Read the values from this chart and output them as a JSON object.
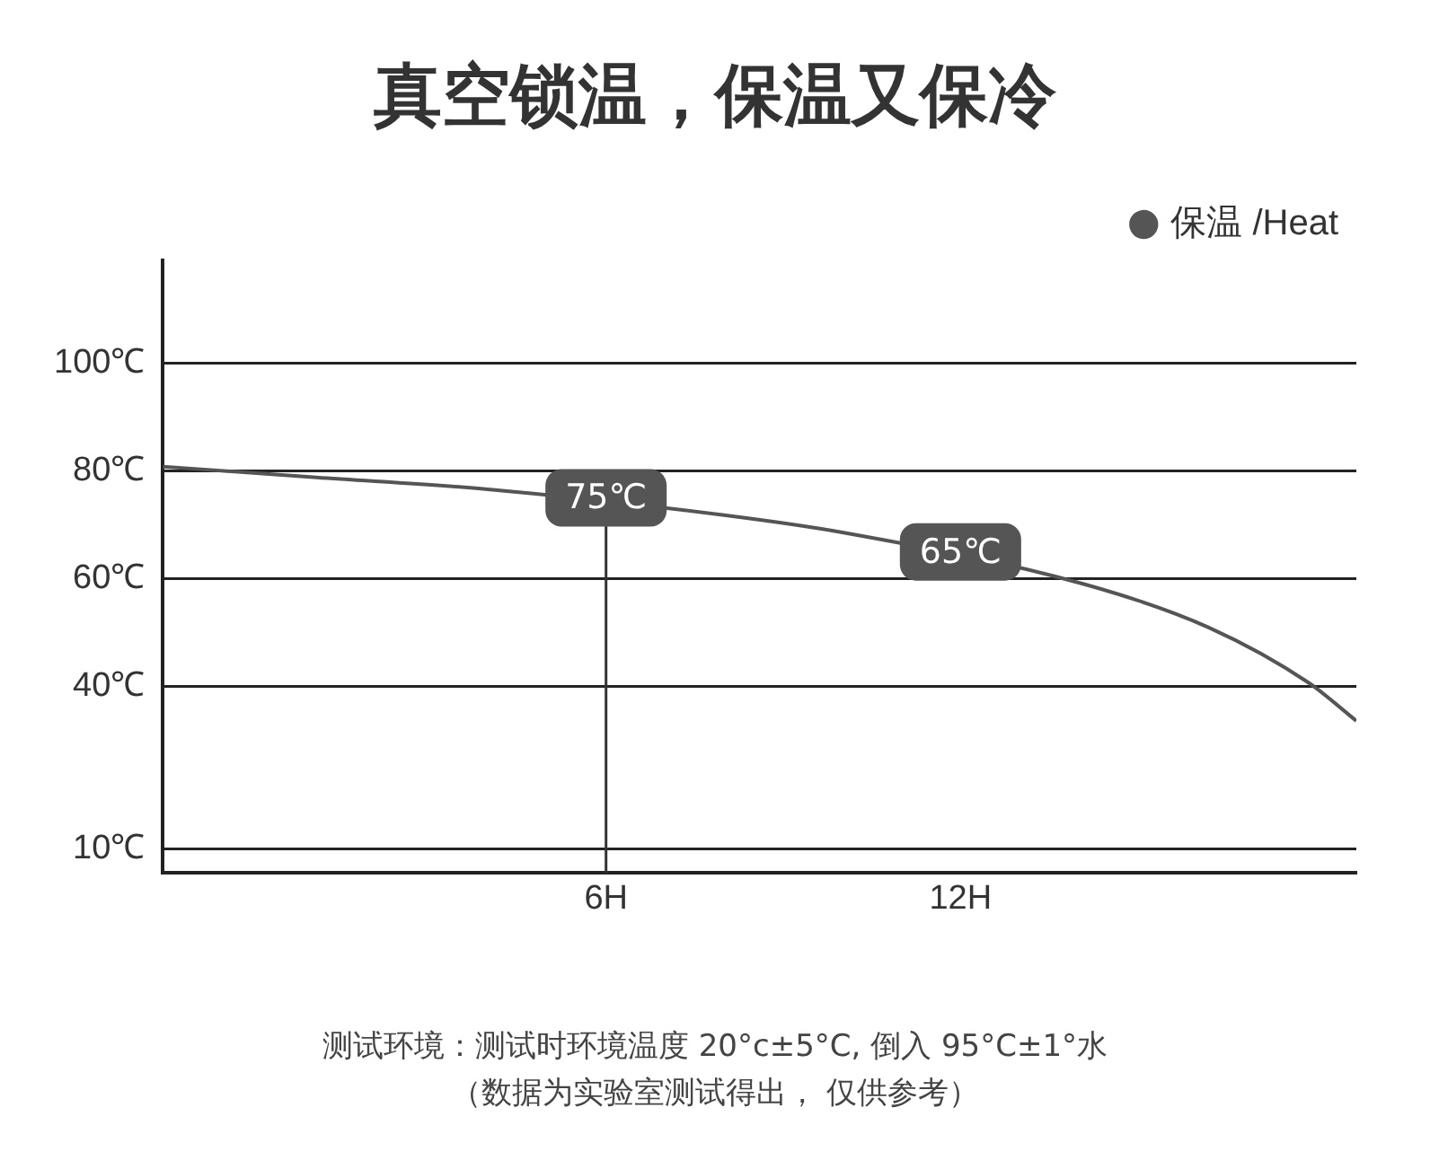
{
  "chart_data": {
    "type": "line",
    "title": "真空锁温，保温又保冷",
    "series": [
      {
        "name": "保温 /Heat",
        "color": "#555555",
        "x": [
          -1.5,
          1.1,
          4,
          8,
          10,
          14.1,
          16.2,
          17.9,
          18.7
        ],
        "values": [
          80.8,
          78.8,
          76.6,
          71.8,
          68.6,
          59,
          51,
          40.7,
          33.7
        ]
      }
    ],
    "xlim": [
      -1.5,
      18.7
    ],
    "xticks": [
      {
        "value": 6,
        "label": "6H"
      },
      {
        "value": 12,
        "label": "12H"
      }
    ],
    "ylim": [
      5.5,
      119
    ],
    "yticks": [
      {
        "value": 100,
        "label": "100℃"
      },
      {
        "value": 80,
        "label": "80℃"
      },
      {
        "value": 60,
        "label": "60℃"
      },
      {
        "value": 40,
        "label": "40℃"
      },
      {
        "value": 10,
        "label": "10℃"
      }
    ],
    "grid": "y",
    "legend": "top right",
    "marker": "none",
    "line_style": "solid",
    "ref_lines": [
      {
        "axis": "x",
        "value": 6,
        "color": "#333333"
      }
    ],
    "annotations": [
      {
        "text": "75℃",
        "x": 6,
        "y": 75
      },
      {
        "text": "65℃",
        "x": 12,
        "y": 65
      },
      "测试环境：测试时环境温度 20°c±5°C, 倒入 95°C±1°水",
      "（数据为实验室测试得出， 仅供参考）"
    ]
  }
}
